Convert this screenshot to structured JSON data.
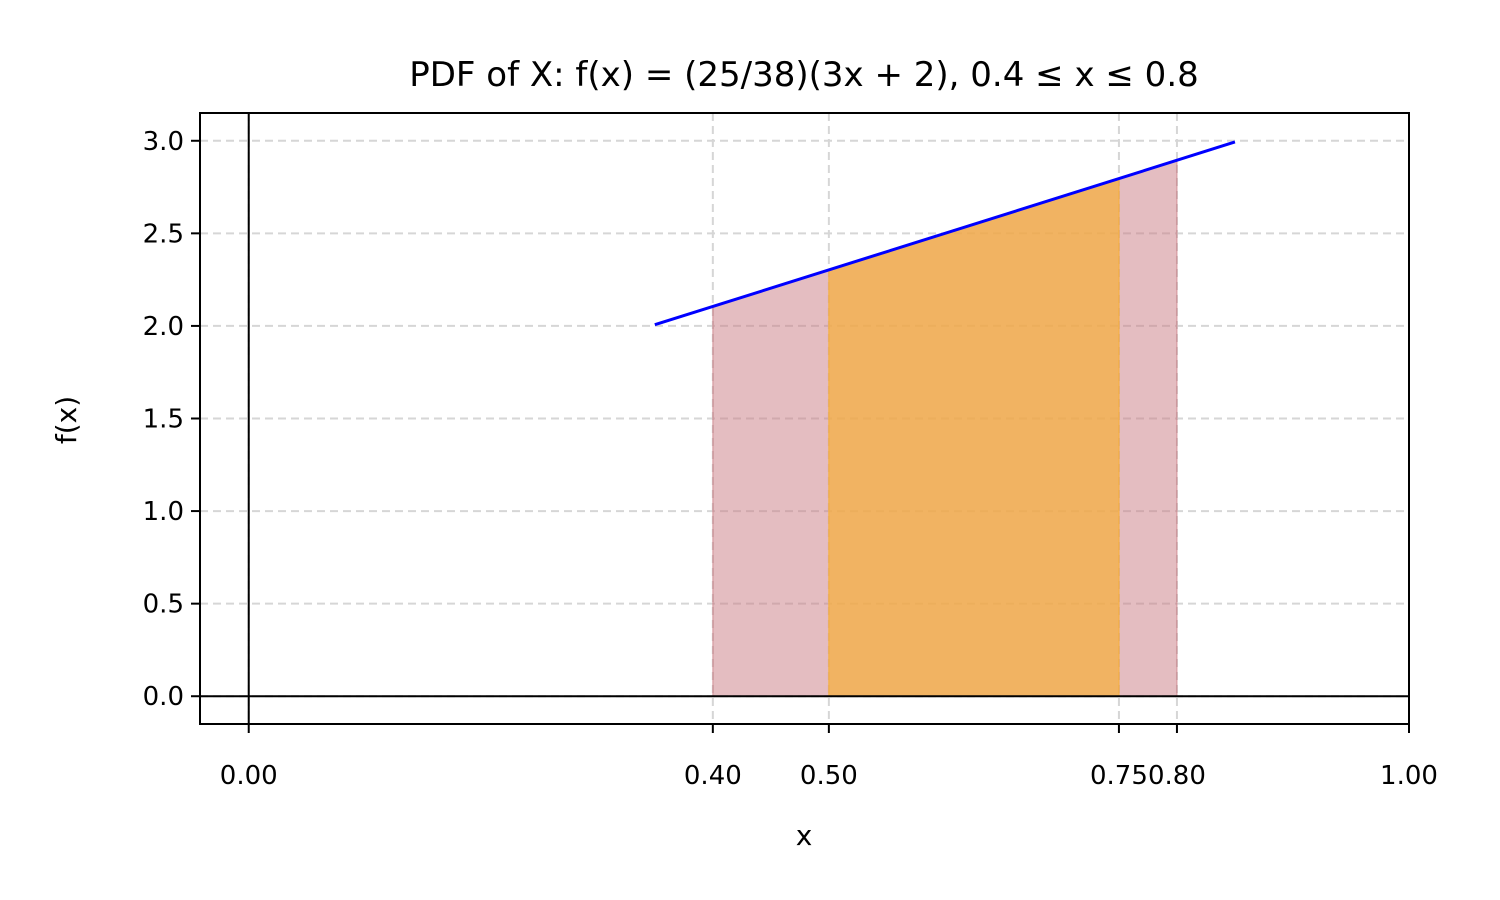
{
  "chart_data": {
    "type": "area",
    "title": "PDF of X: f(x) = (25/38)(3x + 2), 0.4 ≤ x ≤ 0.8",
    "xlabel": "x",
    "ylabel": "f(x)",
    "xlim": [
      -0.042,
      1.0
    ],
    "ylim": [
      -0.15,
      3.15
    ],
    "grid": true,
    "x_ticks": [
      "0.00",
      "0.40",
      "0.50",
      "0.75",
      "0.80",
      "1.00"
    ],
    "x_tick_values": [
      0.0,
      0.4,
      0.5,
      0.75,
      0.8,
      1.0
    ],
    "y_ticks": [
      "0.0",
      "0.5",
      "1.0",
      "1.5",
      "2.0",
      "2.5",
      "3.0"
    ],
    "y_tick_values": [
      0.0,
      0.5,
      1.0,
      1.5,
      2.0,
      2.5,
      3.0
    ],
    "pdf_curve": {
      "x_range": [
        0.35,
        0.85
      ],
      "function": "(25/38)*(3*x+2)",
      "color": "#0000ff"
    },
    "shaded_regions": [
      {
        "x_range": [
          0.4,
          0.8
        ],
        "color": "#c97b84",
        "opacity": 0.5
      },
      {
        "x_range": [
          0.5,
          0.75
        ],
        "color": "#f5b041",
        "opacity": 0.75
      }
    ],
    "reference_lines": {
      "x_zero": 0.0,
      "y_zero": 0.0
    }
  }
}
